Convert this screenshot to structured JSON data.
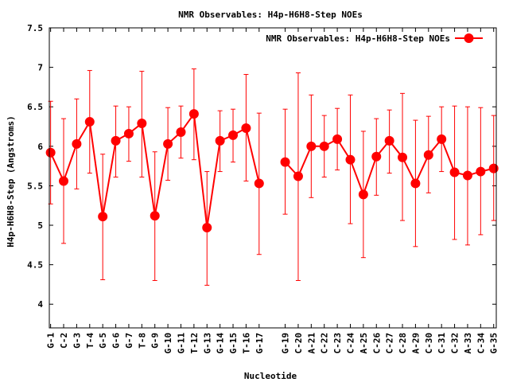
{
  "chart_data": {
    "type": "line",
    "title": "NMR Observables: H4p-H6H8-Step NOEs",
    "xlabel": "Nucleotide",
    "ylabel": "H4p-H6H8-Step (Angstroms)",
    "ylim": [
      3.7,
      7.5
    ],
    "yticks": [
      "4",
      "4.5",
      "5",
      "5.5",
      "6",
      "6.5",
      "7",
      "7.5"
    ],
    "grid": false,
    "legend_position": "top-right",
    "colors": {
      "series": "#ff0000",
      "frame": "#000000",
      "background": "#ffffff"
    },
    "categories": [
      "G-1",
      "C-2",
      "G-3",
      "T-4",
      "G-5",
      "G-6",
      "G-7",
      "T-8",
      "G-9",
      "G-10",
      "G-11",
      "T-12",
      "G-13",
      "G-14",
      "G-15",
      "T-16",
      "G-17",
      "G-19",
      "C-20",
      "A-21",
      "C-22",
      "C-23",
      "C-24",
      "A-25",
      "C-26",
      "C-27",
      "C-28",
      "A-29",
      "C-30",
      "C-31",
      "C-32",
      "A-33",
      "C-34",
      "G-35"
    ],
    "x": [
      1,
      2,
      3,
      4,
      5,
      6,
      7,
      8,
      9,
      10,
      11,
      12,
      13,
      14,
      15,
      16,
      17,
      19,
      20,
      21,
      22,
      23,
      24,
      25,
      26,
      27,
      28,
      29,
      30,
      31,
      32,
      33,
      34,
      35
    ],
    "series": [
      {
        "name": "NMR Observables: H4p-H6H8-Step NOEs",
        "segments": [
          [
            0,
            16
          ],
          [
            17,
            33
          ]
        ],
        "values": [
          5.92,
          5.56,
          6.03,
          6.31,
          5.11,
          6.07,
          6.16,
          6.29,
          5.12,
          6.03,
          6.18,
          6.41,
          4.97,
          6.07,
          6.14,
          6.23,
          5.53,
          5.8,
          5.62,
          6.0,
          6.0,
          6.09,
          5.83,
          5.39,
          5.87,
          6.07,
          5.86,
          5.53,
          5.89,
          6.09,
          5.67,
          5.63,
          5.68,
          5.72
        ],
        "err_low": [
          5.27,
          4.77,
          5.46,
          5.66,
          4.31,
          5.61,
          5.81,
          5.61,
          4.3,
          5.57,
          5.85,
          5.83,
          4.24,
          5.68,
          5.8,
          5.56,
          4.63,
          5.14,
          4.3,
          5.35,
          5.61,
          5.7,
          5.02,
          4.59,
          5.38,
          5.66,
          5.06,
          4.73,
          5.41,
          5.68,
          4.82,
          4.75,
          4.88,
          5.06
        ],
        "err_high": [
          6.57,
          6.35,
          6.6,
          6.96,
          5.9,
          6.51,
          6.5,
          6.95,
          5.93,
          6.49,
          6.51,
          6.98,
          5.68,
          6.45,
          6.47,
          6.91,
          6.42,
          6.47,
          6.93,
          6.65,
          6.39,
          6.48,
          6.65,
          6.19,
          6.35,
          6.46,
          6.67,
          6.33,
          6.38,
          6.5,
          6.51,
          6.5,
          6.49,
          6.39
        ]
      }
    ]
  }
}
